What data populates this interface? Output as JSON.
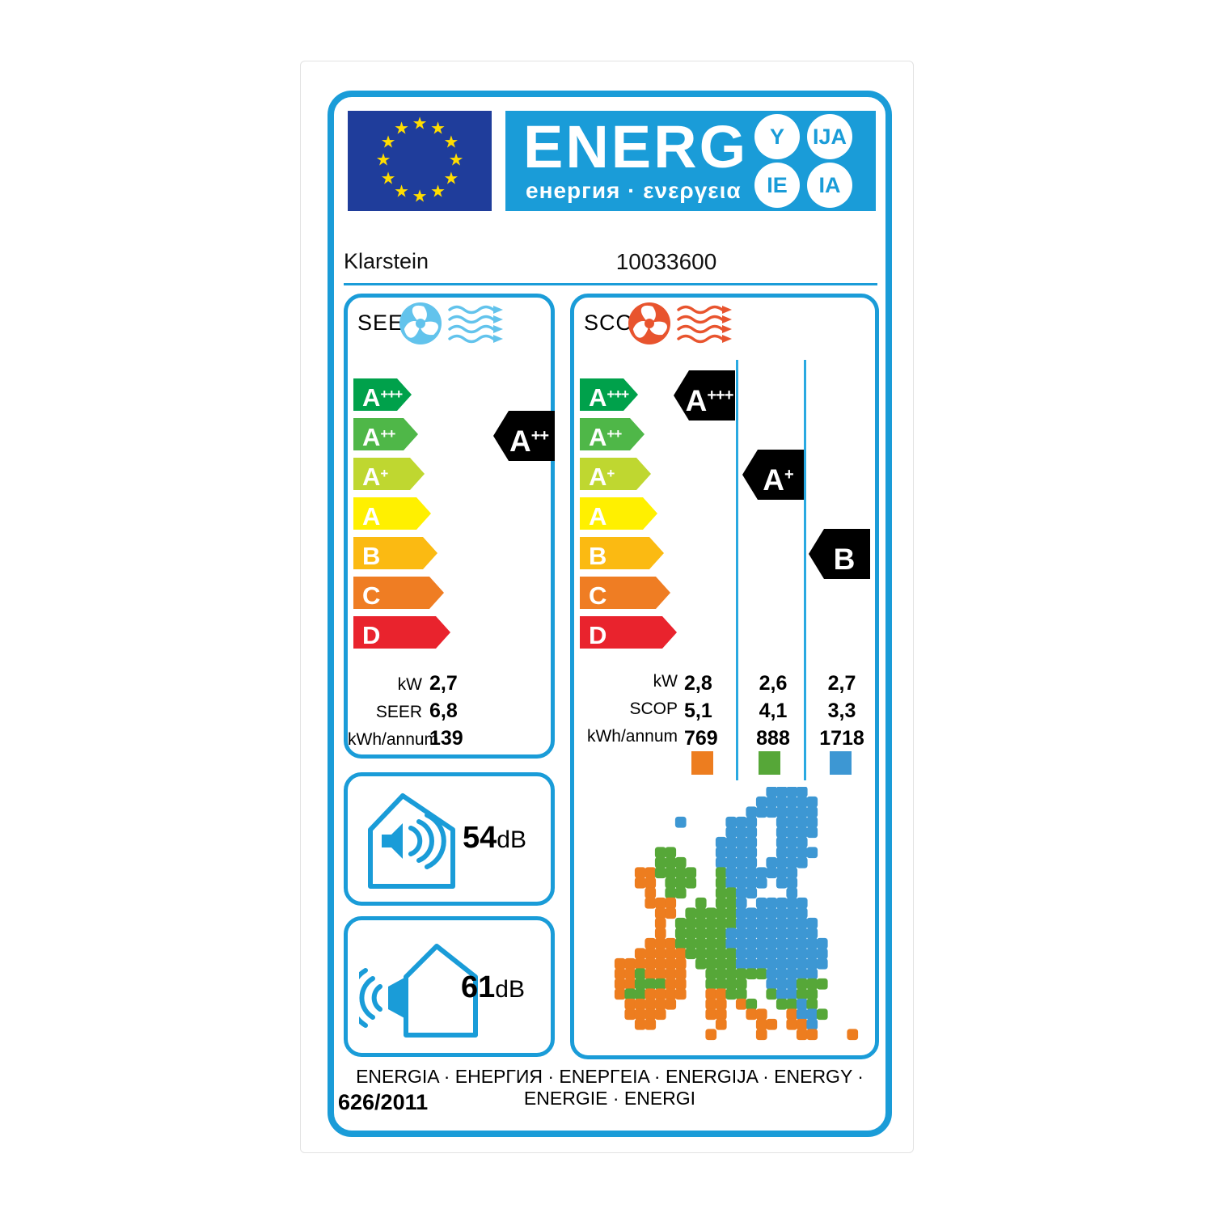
{
  "header": {
    "logo_word": "ENERG",
    "logo_sub": "енергия · ενεργεια",
    "badges": [
      "Y",
      "IJA",
      "IE",
      "IA"
    ]
  },
  "brand": {
    "name": "Klarstein",
    "model": "10033600"
  },
  "scale": {
    "rows": [
      {
        "letter": "A",
        "sup": "+++",
        "color": "#00A14B"
      },
      {
        "letter": "A",
        "sup": "++",
        "color": "#4FB748"
      },
      {
        "letter": "A",
        "sup": "+",
        "color": "#BFD730"
      },
      {
        "letter": "A",
        "sup": "",
        "color": "#FFF000"
      },
      {
        "letter": "B",
        "sup": "",
        "color": "#FBBA12"
      },
      {
        "letter": "C",
        "sup": "",
        "color": "#EF7D23"
      },
      {
        "letter": "D",
        "sup": "",
        "color": "#E9232D"
      }
    ]
  },
  "seer": {
    "title": "SEER",
    "rating": {
      "letter": "A",
      "sup": "++"
    },
    "values": [
      {
        "label": "kW",
        "value": "2,7"
      },
      {
        "label": "SEER",
        "value": "6,8"
      },
      {
        "label": "kWh/annum",
        "value": "139"
      }
    ]
  },
  "scop": {
    "title": "SCOP",
    "ratings": [
      {
        "letter": "A",
        "sup": "+++"
      },
      {
        "letter": "A",
        "sup": "+"
      },
      {
        "letter": "B",
        "sup": ""
      }
    ],
    "values": [
      {
        "label": "kW",
        "cols": [
          "2,8",
          "2,6",
          "2,7"
        ]
      },
      {
        "label": "SCOP",
        "cols": [
          "5,1",
          "4,1",
          "3,3"
        ]
      },
      {
        "label": "kWh/annum",
        "cols": [
          "769",
          "888",
          "1718"
        ]
      }
    ],
    "zone_colors": [
      "#ED7D1F",
      "#56A738",
      "#3D97D3"
    ]
  },
  "noise": {
    "indoor": {
      "value": "54",
      "unit": "dB"
    },
    "outdoor": {
      "value": "61",
      "unit": "dB"
    }
  },
  "footer": {
    "languages": "ENERGIA · ЕНЕРГИЯ · ΕΝΕΡΓΕΙΑ · ENERGIJA · ENERGY · ENERGIE · ENERGI",
    "regulation": "626/2011"
  },
  "colors": {
    "label_blue": "#1A9CD8",
    "divider_blue": "#29A9E1",
    "flag_blue": "#1F3D9B",
    "star_yellow": "#FFDD00",
    "seer_fan": "#62C3EC",
    "scop_fan": "#E8542E",
    "map_orange": "#ED7D1F",
    "map_green": "#56A738",
    "map_blue": "#3D97D3"
  },
  "map": {
    "grid": [
      "................bbbb......",
      "...............bbbbbb.....",
      "..............bbbbbbb.....",
      ".......b....bbb..bbbb.....",
      "............bbb..bbbb.....",
      "...........bbbb..bbb......",
      ".....gg....bbbb..bbbb.....",
      ".....ggg...bbbb.bbbb......",
      "...oogggg..gbbbbbbb.......",
      "...oo.ggg..gbbbb.bb.......",
      "....o.gg...ggbb...b.......",
      "....ooo..g.ggb.bbbbb......",
      ".....oo.gggggbbbbbbb......",
      ".....o.ggggggbbbbbbbb.....",
      ".....o.gggggbbbbbbbbb.....",
      "....ooogggggbbbbbbbbbb....",
      "...ooooogggggbbbbbbbbb....",
      ".ooooooo.ggggbbbbbbbbb....",
      ".oogoooo..ggggggbbbbb.....",
      ".oogggoo..gggg..bbbggg....",
      ".oggoooo..oogg..gbbgg.....",
      "..ooooo...oo.og..ggbg.....",
      "..oooo....oo..oo..obbg....",
      "...oo......o...oo.oob.....",
      "..........o....o...oo...o."
    ]
  }
}
